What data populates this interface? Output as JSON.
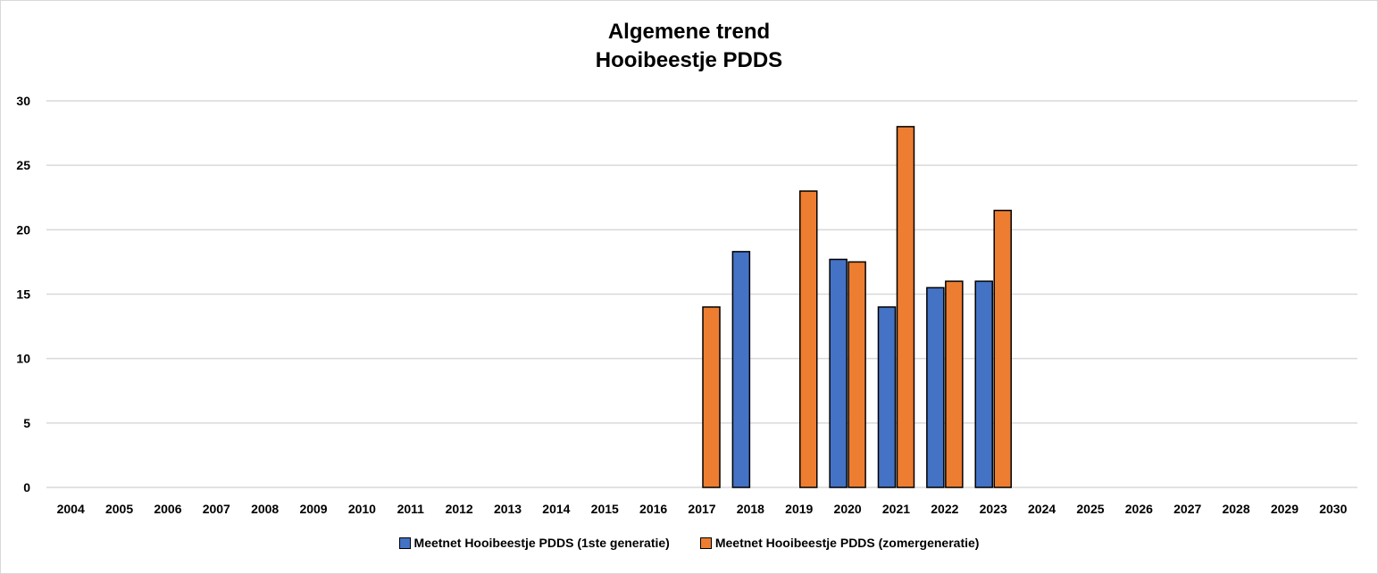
{
  "chart_data": {
    "type": "bar",
    "title_lines": [
      "Algemene trend",
      "Hooibeestje PDDS"
    ],
    "categories": [
      "2004",
      "2005",
      "2006",
      "2007",
      "2008",
      "2009",
      "2010",
      "2011",
      "2012",
      "2013",
      "2014",
      "2015",
      "2016",
      "2017",
      "2018",
      "2019",
      "2020",
      "2021",
      "2022",
      "2023",
      "2024",
      "2025",
      "2026",
      "2027",
      "2028",
      "2029",
      "2030"
    ],
    "ylim": [
      0,
      30
    ],
    "yticks": [
      0,
      5,
      10,
      15,
      20,
      25,
      30
    ],
    "grid": true,
    "legend_position": "bottom",
    "series": [
      {
        "name": "Meetnet Hooibeestje PDDS (1ste generatie)",
        "color": "#4472c4",
        "values": [
          null,
          null,
          null,
          null,
          null,
          null,
          null,
          null,
          null,
          null,
          null,
          null,
          null,
          null,
          18.3,
          null,
          17.7,
          14.0,
          15.5,
          16.0,
          null,
          null,
          null,
          null,
          null,
          null,
          null
        ]
      },
      {
        "name": "Meetnet Hooibeestje PDDS (zomergeneratie)",
        "color": "#ed7d31",
        "values": [
          null,
          null,
          null,
          null,
          null,
          null,
          null,
          null,
          null,
          null,
          null,
          null,
          null,
          14.0,
          null,
          23.0,
          17.5,
          28.0,
          16.0,
          21.5,
          null,
          null,
          null,
          null,
          null,
          null,
          null
        ]
      }
    ]
  }
}
